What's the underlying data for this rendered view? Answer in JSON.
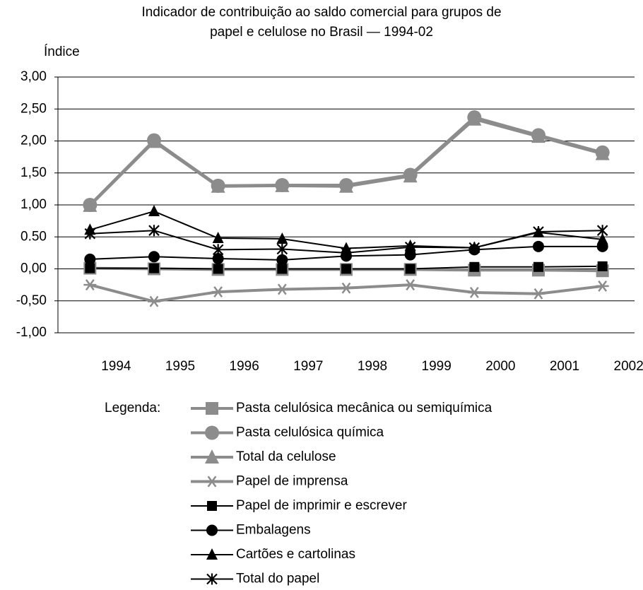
{
  "chart_data": {
    "type": "line",
    "title": [
      "Indicador de contribuição ao saldo comercial para grupos de",
      "papel e celulose no Brasil — 1994-02"
    ],
    "y_label": "Índice",
    "legend_title": "Legenda:",
    "categories": [
      "1994",
      "1995",
      "1996",
      "1997",
      "1998",
      "1999",
      "2000",
      "2001",
      "2002"
    ],
    "ylim": [
      -1,
      3
    ],
    "yticks": [
      {
        "value": 3,
        "label": "3,00"
      },
      {
        "value": 2.5,
        "label": "2,50"
      },
      {
        "value": 2,
        "label": "2,00"
      },
      {
        "value": 1.5,
        "label": "1,50"
      },
      {
        "value": 1,
        "label": "1,00"
      },
      {
        "value": 0.5,
        "label": "0.50"
      },
      {
        "value": 0,
        "label": "0,00"
      },
      {
        "value": -0.5,
        "label": "-0,50"
      },
      {
        "value": -1,
        "label": "-1,00"
      }
    ],
    "grid": true,
    "series": [
      {
        "name": "Pasta celulósica mecânica ou semiquímica",
        "color": "#8c8c8c",
        "marker": "square",
        "values": [
          0.01,
          0.0,
          -0.01,
          -0.01,
          -0.01,
          -0.01,
          -0.02,
          -0.02,
          -0.03
        ]
      },
      {
        "name": "Pasta celulósica química",
        "color": "#8c8c8c",
        "marker": "circle",
        "values": [
          1.0,
          2.01,
          1.3,
          1.31,
          1.31,
          1.47,
          2.37,
          2.09,
          1.82
        ]
      },
      {
        "name": "Total da celulose",
        "color": "#8c8c8c",
        "marker": "triangle",
        "values": [
          0.99,
          1.99,
          1.29,
          1.3,
          1.29,
          1.45,
          2.34,
          2.07,
          1.8
        ]
      },
      {
        "name": "Papel de imprensa",
        "color": "#8c8c8c",
        "marker": "star",
        "values": [
          -0.25,
          -0.51,
          -0.36,
          -0.32,
          -0.3,
          -0.25,
          -0.37,
          -0.39,
          -0.27
        ]
      },
      {
        "name": "Papel de imprimir e escrever",
        "color": "#000000",
        "marker": "square",
        "values": [
          0.01,
          0.01,
          0.0,
          0.0,
          0.0,
          0.0,
          0.03,
          0.03,
          0.04
        ]
      },
      {
        "name": "Embalagens",
        "color": "#000000",
        "marker": "circle",
        "values": [
          0.15,
          0.19,
          0.16,
          0.14,
          0.2,
          0.22,
          0.3,
          0.35,
          0.35
        ]
      },
      {
        "name": "Cartões e cartolinas",
        "color": "#000000",
        "marker": "triangle",
        "values": [
          0.61,
          0.9,
          0.48,
          0.47,
          0.32,
          0.36,
          0.33,
          0.57,
          0.46
        ]
      },
      {
        "name": "Total do papel",
        "color": "#000000",
        "marker": "star",
        "values": [
          0.55,
          0.6,
          0.3,
          0.31,
          0.25,
          0.34,
          0.33,
          0.58,
          0.6
        ]
      }
    ]
  }
}
